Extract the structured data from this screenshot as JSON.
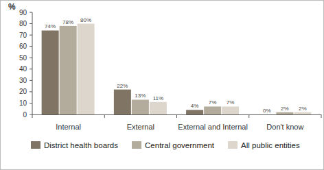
{
  "chart_data": {
    "type": "bar",
    "y_label": "%",
    "categories": [
      "Internal",
      "External",
      "External and Internal",
      "Don't know"
    ],
    "series": [
      {
        "name": "District health boards",
        "color": "#807565",
        "values": [
          74,
          22,
          4,
          0
        ],
        "value_labels": [
          "74%",
          "22%",
          "4%",
          "0%"
        ]
      },
      {
        "name": "Central government",
        "color": "#b3ab9b",
        "values": [
          78,
          13,
          7,
          2
        ],
        "value_labels": [
          "78%",
          "13%",
          "7%",
          "2%"
        ]
      },
      {
        "name": "All public entities",
        "color": "#dcd6cd",
        "values": [
          80,
          11,
          7,
          2
        ],
        "value_labels": [
          "80%",
          "11%",
          "7%",
          "2%"
        ]
      }
    ],
    "ylim": [
      0,
      90
    ],
    "yticks": [
      0,
      10,
      20,
      30,
      40,
      50,
      60,
      70,
      80,
      90
    ],
    "grid": false,
    "data_labels": true,
    "legend": "bottom"
  }
}
